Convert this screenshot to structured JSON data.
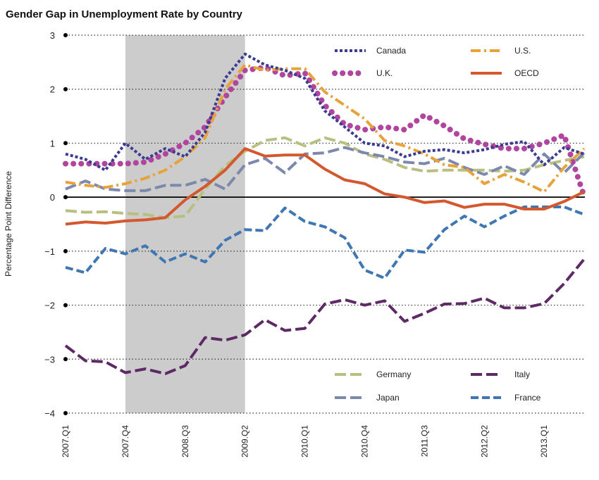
{
  "chart_data": {
    "type": "line",
    "title": "Gender Gap in Unemployment Rate by Country",
    "ylabel": "Percentage Point Difference",
    "xlabel": "",
    "ylim": [
      -4,
      3
    ],
    "y_ticks": [
      "3",
      "2",
      "1",
      "0",
      "−1",
      "−2",
      "−3",
      "−4"
    ],
    "x_ticks": [
      "2007.Q1",
      "2007.Q4",
      "2008.Q3",
      "2009.Q2",
      "2010.Q1",
      "2010.Q4",
      "2011.Q3",
      "2012.Q2",
      "2013.Q1"
    ],
    "grid": "horizontal dotted",
    "recession_shading": {
      "from": "2007.Q4",
      "to": "2009.Q2",
      "color": "#cccccc"
    },
    "categories": [
      "2007.Q1",
      "2007.Q2",
      "2007.Q3",
      "2007.Q4",
      "2008.Q1",
      "2008.Q2",
      "2008.Q3",
      "2008.Q4",
      "2009.Q1",
      "2009.Q2",
      "2009.Q3",
      "2009.Q4",
      "2010.Q1",
      "2010.Q2",
      "2010.Q3",
      "2010.Q4",
      "2011.Q1",
      "2011.Q2",
      "2011.Q3",
      "2011.Q4",
      "2012.Q1",
      "2012.Q2",
      "2012.Q3",
      "2012.Q4",
      "2013.Q1",
      "2013.Q2",
      "2013.Q3"
    ],
    "series": [
      {
        "name": "Canada",
        "color": "#3b3b8f",
        "dash": "4,3",
        "width": 4,
        "values": [
          0.8,
          0.7,
          0.5,
          1.0,
          0.7,
          0.9,
          0.75,
          1.2,
          2.2,
          2.65,
          2.45,
          2.35,
          2.2,
          1.6,
          1.3,
          1.0,
          0.95,
          0.75,
          0.85,
          0.88,
          0.82,
          0.88,
          0.98,
          1.03,
          0.6,
          0.92,
          0.8
        ]
      },
      {
        "name": "U.S.",
        "color": "#e8a23a",
        "dash": "14,5,3,5",
        "width": 4,
        "values": [
          0.28,
          0.22,
          0.18,
          0.25,
          0.35,
          0.5,
          0.75,
          1.1,
          2.0,
          2.45,
          2.35,
          2.38,
          2.38,
          1.95,
          1.7,
          1.45,
          1.05,
          0.95,
          0.8,
          0.6,
          0.55,
          0.25,
          0.42,
          0.28,
          0.1,
          0.55,
          0.9
        ]
      },
      {
        "name": "U.K.",
        "color": "#b0449e",
        "dash": "0.1,11",
        "width": 8,
        "values": [
          0.62,
          0.62,
          0.62,
          0.62,
          0.65,
          0.8,
          1.0,
          1.3,
          1.85,
          2.35,
          2.4,
          2.25,
          2.3,
          1.7,
          1.35,
          1.25,
          1.3,
          1.25,
          1.52,
          1.32,
          1.08,
          0.98,
          0.9,
          0.9,
          1.0,
          1.15,
          0.02
        ]
      },
      {
        "name": "OECD",
        "color": "#d4582e",
        "dash": "",
        "width": 4,
        "values": [
          -0.5,
          -0.46,
          -0.48,
          -0.44,
          -0.42,
          -0.38,
          -0.05,
          0.2,
          0.5,
          0.9,
          0.76,
          0.78,
          0.78,
          0.52,
          0.32,
          0.25,
          0.06,
          0.0,
          -0.1,
          -0.07,
          -0.19,
          -0.13,
          -0.13,
          -0.22,
          -0.22,
          -0.08,
          0.1
        ]
      },
      {
        "name": "Germany",
        "color": "#b8bf7f",
        "dash": "16,6",
        "width": 4,
        "values": [
          -0.25,
          -0.28,
          -0.27,
          -0.3,
          -0.32,
          -0.38,
          -0.35,
          0.15,
          0.58,
          0.85,
          1.05,
          1.1,
          0.95,
          1.1,
          1.0,
          0.8,
          0.7,
          0.55,
          0.48,
          0.5,
          0.5,
          0.5,
          0.48,
          0.5,
          0.6,
          0.68,
          0.75
        ]
      },
      {
        "name": "Japan",
        "color": "#7c89ad",
        "dash": "16,6",
        "width": 4,
        "values": [
          0.15,
          0.3,
          0.15,
          0.12,
          0.12,
          0.22,
          0.22,
          0.33,
          0.15,
          0.6,
          0.72,
          0.45,
          0.8,
          0.82,
          0.92,
          0.82,
          0.75,
          0.65,
          0.62,
          0.72,
          0.55,
          0.42,
          0.58,
          0.42,
          0.8,
          0.45,
          0.82
        ]
      },
      {
        "name": "Italy",
        "color": "#5e2a66",
        "dash": "16,6",
        "width": 4,
        "values": [
          -2.75,
          -3.03,
          -3.05,
          -3.25,
          -3.18,
          -3.27,
          -3.12,
          -2.6,
          -2.65,
          -2.55,
          -2.27,
          -2.47,
          -2.43,
          -1.98,
          -1.9,
          -2.0,
          -1.92,
          -2.3,
          -2.15,
          -1.98,
          -1.97,
          -1.87,
          -2.05,
          -2.05,
          -1.97,
          -1.6,
          -1.15
        ]
      },
      {
        "name": "France",
        "color": "#3f76b4",
        "dash": "11,5",
        "width": 4,
        "values": [
          -1.3,
          -1.4,
          -0.95,
          -1.05,
          -0.9,
          -1.2,
          -1.05,
          -1.2,
          -0.8,
          -0.6,
          -0.62,
          -0.2,
          -0.45,
          -0.55,
          -0.75,
          -1.35,
          -1.5,
          -0.98,
          -1.02,
          -0.6,
          -0.35,
          -0.55,
          -0.35,
          -0.18,
          -0.18,
          -0.18,
          -0.32
        ]
      }
    ],
    "legend_rows": [
      [
        "Canada",
        "U.S."
      ],
      [
        "U.K.",
        "OECD"
      ],
      [
        "Germany",
        "Italy"
      ],
      [
        "Japan",
        "France"
      ]
    ]
  }
}
